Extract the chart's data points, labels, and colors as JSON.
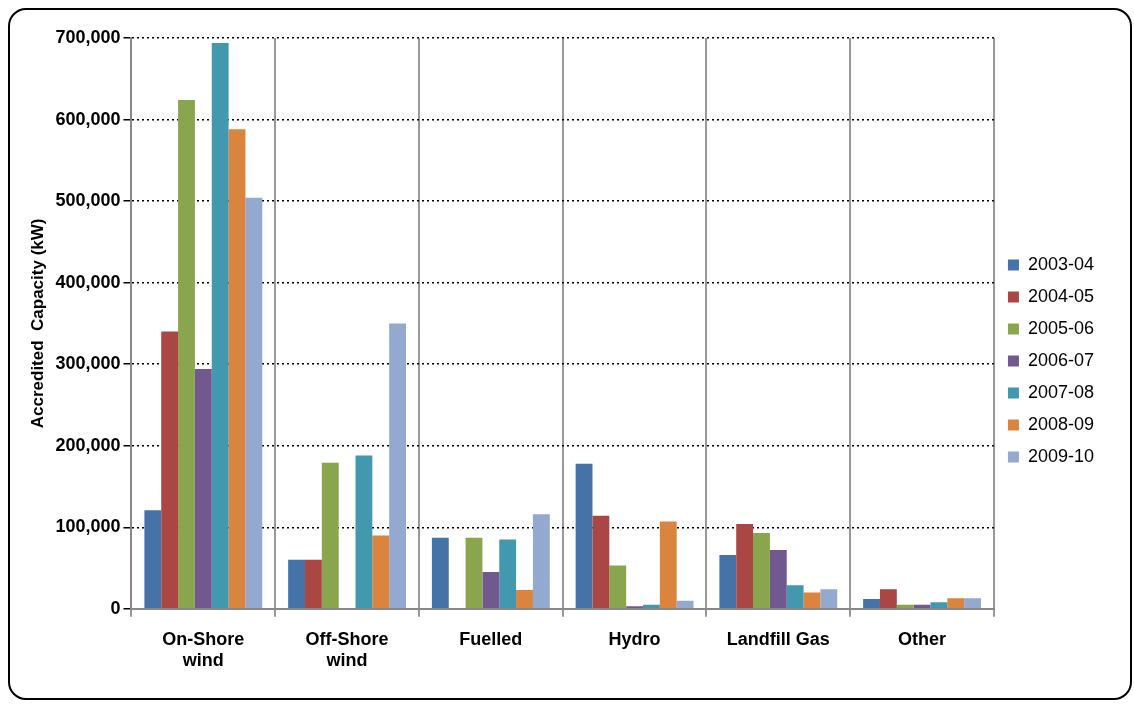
{
  "chart_data": {
    "type": "bar",
    "ylabel": "Accredited  Capacity (kW)",
    "categories": [
      "On-Shore wind",
      "Off-Shore wind",
      "Fuelled",
      "Hydro",
      "Landfill Gas",
      "Other"
    ],
    "series": [
      {
        "name": "2003-04",
        "color": "#4572a7",
        "values": [
          121000,
          60000,
          87000,
          178000,
          66000,
          12000
        ]
      },
      {
        "name": "2004-05",
        "color": "#aa4643",
        "values": [
          340000,
          60000,
          0,
          114000,
          104000,
          24000
        ]
      },
      {
        "name": "2005-06",
        "color": "#89a54e",
        "values": [
          624000,
          179000,
          87000,
          53000,
          93000,
          5000
        ]
      },
      {
        "name": "2006-07",
        "color": "#71588f",
        "values": [
          294000,
          0,
          45000,
          3000,
          72000,
          5000
        ]
      },
      {
        "name": "2007-08",
        "color": "#4198af",
        "values": [
          694000,
          188000,
          85000,
          5000,
          29000,
          8000
        ]
      },
      {
        "name": "2008-09",
        "color": "#db843d",
        "values": [
          588000,
          90000,
          23000,
          107000,
          20000,
          13000
        ]
      },
      {
        "name": "2009-10",
        "color": "#93a9cf",
        "values": [
          504000,
          350000,
          116000,
          10000,
          24000,
          13000
        ]
      }
    ],
    "ylim": [
      0,
      700000
    ],
    "yticks": [
      0,
      {
        "value": 100000,
        "label": "100,000"
      },
      {
        "value": 200000,
        "label": "200,000"
      },
      {
        "value": 300000,
        "label": "300,000"
      },
      {
        "value": 400000,
        "label": "400,000"
      },
      {
        "value": 500000,
        "label": "500,000"
      },
      {
        "value": 600000,
        "label": "600,000"
      },
      {
        "value": 700000,
        "label": "700,000"
      }
    ],
    "grid": true,
    "legend": "right"
  }
}
